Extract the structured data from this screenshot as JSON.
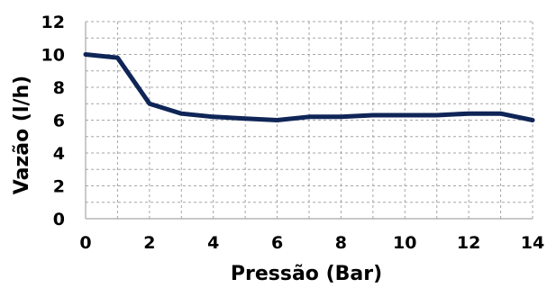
{
  "chart_data": {
    "type": "line",
    "title": "",
    "xlabel": "Pressão (Bar)",
    "ylabel": "Vazão (l/h)",
    "xlim": [
      0,
      14
    ],
    "ylim": [
      0,
      12
    ],
    "x_ticks": [
      0,
      2,
      4,
      6,
      8,
      10,
      12,
      14
    ],
    "y_ticks": [
      0,
      2,
      4,
      6,
      8,
      10,
      12
    ],
    "grid": true,
    "grid_style": "dashed",
    "legend": "none",
    "series": [
      {
        "color": "#0f2557",
        "x": [
          0,
          1,
          2,
          3,
          4,
          5,
          6,
          7,
          8,
          9,
          10,
          11,
          12,
          13,
          14
        ],
        "y": [
          10.0,
          9.8,
          7.0,
          6.4,
          6.2,
          6.1,
          6.0,
          6.2,
          6.2,
          6.3,
          6.3,
          6.3,
          6.4,
          6.4,
          6.0
        ]
      }
    ]
  }
}
